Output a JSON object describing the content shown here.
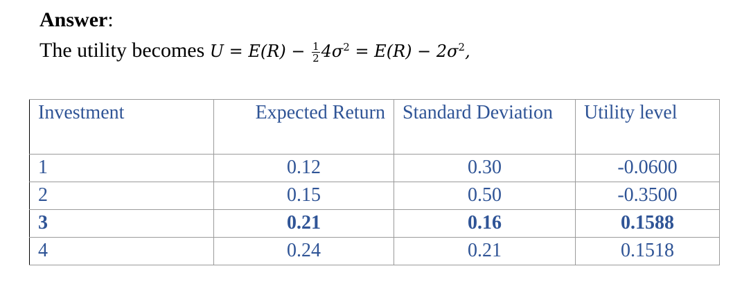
{
  "answer": {
    "label": "Answer",
    "colon": ":"
  },
  "formula": {
    "intro": "The utility becomes ",
    "lhs": "U = E(R) − ",
    "frac_num": "1",
    "frac_den": "2",
    "mid": "4σ",
    "sup1": "2",
    "rhs": " = E(R) − 2σ",
    "sup2": "2",
    "end": ","
  },
  "table": {
    "header": [
      "Investment",
      "Expected Return",
      "Standard Deviation",
      "Utility level"
    ],
    "rows": [
      [
        "1",
        "0.12",
        "0.30",
        "-0.0600"
      ],
      [
        "2",
        "0.15",
        "0.50",
        "-0.3500"
      ],
      [
        "3",
        "0.21",
        "0.16",
        "0.1588"
      ],
      [
        "4",
        "0.24",
        "0.21",
        "0.1518"
      ]
    ]
  }
}
